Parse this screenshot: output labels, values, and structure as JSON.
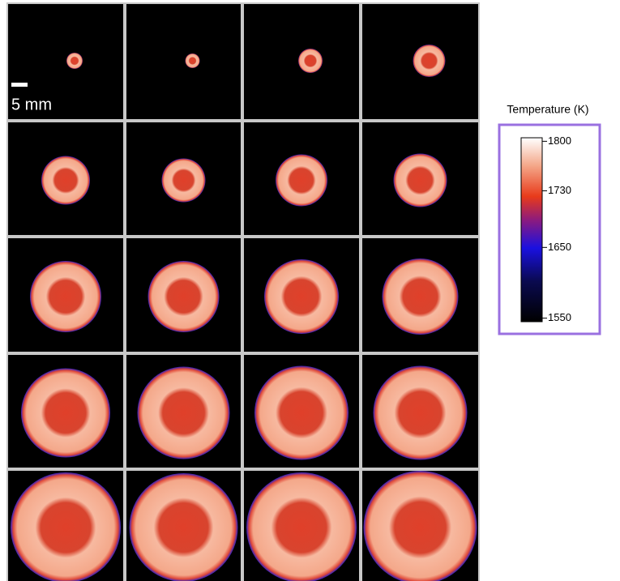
{
  "scale_bar": {
    "label": "5 mm"
  },
  "colorbar": {
    "title": "Temperature (K)",
    "lim": [
      1545,
      1805
    ],
    "ticks": [
      1800,
      1730,
      1650,
      1550
    ]
  }
}
